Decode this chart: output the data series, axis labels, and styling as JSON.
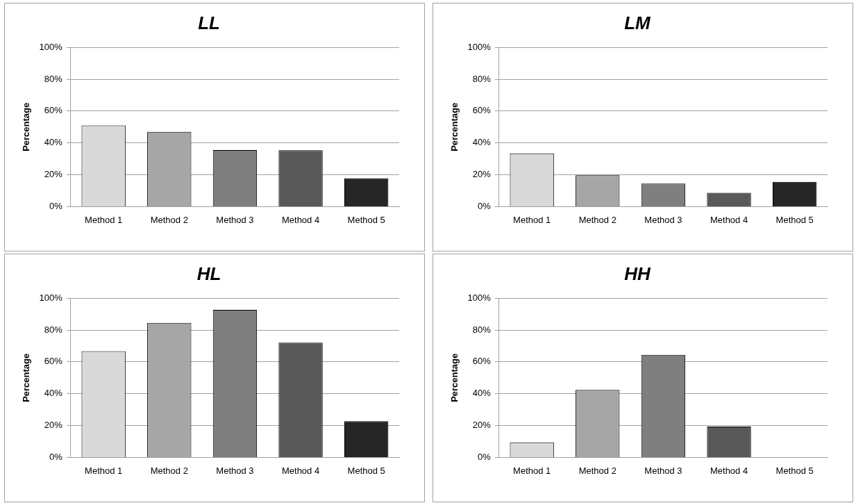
{
  "chart_data": [
    {
      "type": "bar",
      "title": "LL",
      "ylabel": "Percentage",
      "categories": [
        "Method 1",
        "Method 2",
        "Method 3",
        "Method 4",
        "Method 5"
      ],
      "values": [
        51,
        47,
        35.5,
        35.4,
        17.8
      ],
      "colors": [
        "#d9d9d9",
        "#a6a6a6",
        "#7f7f7f",
        "#595959",
        "#262626"
      ],
      "ylim": [
        0,
        100
      ],
      "yticks": [
        {
          "value": 0,
          "label": "0%"
        },
        {
          "value": 20,
          "label": "20%"
        },
        {
          "value": 40,
          "label": "40%"
        },
        {
          "value": 60,
          "label": "60%"
        },
        {
          "value": 80,
          "label": "80%"
        },
        {
          "value": 100,
          "label": "100%"
        }
      ],
      "grid": "y",
      "legend": false
    },
    {
      "type": "bar",
      "title": "LM",
      "ylabel": "Percentage",
      "categories": [
        "Method 1",
        "Method 2",
        "Method 3",
        "Method 4",
        "Method 5"
      ],
      "values": [
        33.4,
        19.7,
        14.5,
        8.7,
        15.5
      ],
      "colors": [
        "#d9d9d9",
        "#a6a6a6",
        "#7f7f7f",
        "#595959",
        "#262626"
      ],
      "ylim": [
        0,
        100
      ],
      "yticks": [
        {
          "value": 0,
          "label": "0%"
        },
        {
          "value": 20,
          "label": "20%"
        },
        {
          "value": 40,
          "label": "40%"
        },
        {
          "value": 60,
          "label": "60%"
        },
        {
          "value": 80,
          "label": "80%"
        },
        {
          "value": 100,
          "label": "100%"
        }
      ],
      "grid": "y",
      "legend": false
    },
    {
      "type": "bar",
      "title": "HL",
      "ylabel": "Percentage",
      "categories": [
        "Method 1",
        "Method 2",
        "Method 3",
        "Method 4",
        "Method 5"
      ],
      "values": [
        66.7,
        84.5,
        92.7,
        72.1,
        22.7
      ],
      "colors": [
        "#d9d9d9",
        "#a6a6a6",
        "#7f7f7f",
        "#595959",
        "#262626"
      ],
      "ylim": [
        0,
        100
      ],
      "yticks": [
        {
          "value": 0,
          "label": "0%"
        },
        {
          "value": 20,
          "label": "20%"
        },
        {
          "value": 40,
          "label": "40%"
        },
        {
          "value": 60,
          "label": "60%"
        },
        {
          "value": 80,
          "label": "80%"
        },
        {
          "value": 100,
          "label": "100%"
        }
      ],
      "grid": "y",
      "legend": false
    },
    {
      "type": "bar",
      "title": "HH",
      "ylabel": "Percentage",
      "categories": [
        "Method 1",
        "Method 2",
        "Method 3",
        "Method 4",
        "Method 5"
      ],
      "values": [
        9.4,
        42.4,
        64.4,
        19.4,
        0
      ],
      "colors": [
        "#d9d9d9",
        "#a6a6a6",
        "#7f7f7f",
        "#595959",
        "#262626"
      ],
      "ylim": [
        0,
        100
      ],
      "yticks": [
        {
          "value": 0,
          "label": "0%"
        },
        {
          "value": 20,
          "label": "20%"
        },
        {
          "value": 40,
          "label": "40%"
        },
        {
          "value": 60,
          "label": "60%"
        },
        {
          "value": 80,
          "label": "80%"
        },
        {
          "value": 100,
          "label": "100%"
        }
      ],
      "grid": "y",
      "legend": false
    }
  ]
}
